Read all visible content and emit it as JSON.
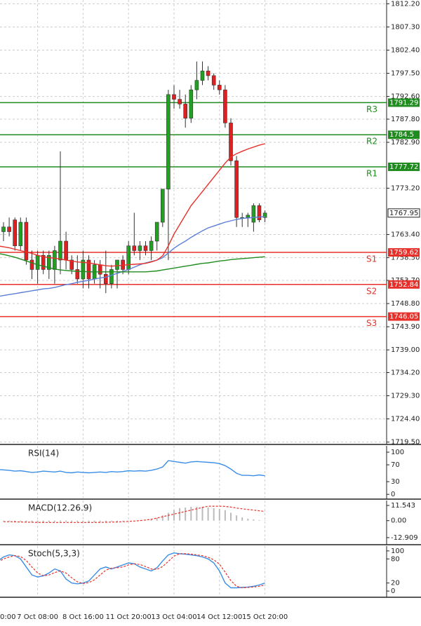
{
  "chart_data": [
    {
      "type": "candlestick",
      "categories": [
        "0:00",
        null,
        null,
        null,
        null,
        null,
        null,
        null,
        "7 Oct 08:00",
        null,
        null,
        null,
        null,
        null,
        null,
        null,
        "8 Oct 16:00",
        null,
        null,
        null,
        null,
        null,
        null,
        null,
        "11 Oct 20:00",
        null,
        null,
        null,
        null,
        null,
        null,
        null,
        "13 Oct 04:00",
        null,
        null,
        null,
        null,
        null,
        null,
        null,
        "14 Oct 12:00",
        null,
        null,
        null,
        null,
        null,
        null,
        null,
        "15 Oct 20:00"
      ],
      "open": [
        null,
        null,
        1764,
        1765,
        1766.5,
        1761,
        1766,
        1758,
        1756,
        1759,
        1756,
        1756,
        1758,
        1762,
        1758,
        1756,
        1754,
        1758,
        1754,
        1757,
        1755,
        1753,
        1756,
        1758,
        1756,
        1761,
        1760,
        1761,
        1760,
        1762,
        1766,
        1773,
        1793,
        1792,
        1791,
        1788,
        1794,
        1796,
        1798,
        1797,
        1795,
        1794,
        1787,
        1779,
        1767,
        1767,
        1766,
        1769.5,
        1767
      ],
      "high": [
        null,
        null,
        1766,
        1767,
        1767,
        1767,
        1767,
        1760,
        1760,
        1760,
        1760,
        1761,
        1781,
        1764,
        1759,
        1759,
        1760,
        1759,
        1758,
        1758,
        1760,
        1757,
        1758,
        1759,
        1762,
        1768,
        1762,
        1762,
        1763,
        1766,
        1773,
        1794,
        1795,
        1794,
        1793,
        1795,
        1800,
        1800,
        1799,
        1797.5,
        1796,
        1795,
        1788,
        1780,
        1768,
        1768,
        1770,
        1770,
        1768.5
      ],
      "low": [
        null,
        null,
        1762,
        1763,
        1760,
        1760,
        1757,
        1754,
        1753,
        1755,
        1754,
        1753,
        1755,
        1756,
        1755,
        1753,
        1752,
        1752,
        1753,
        1752,
        1751,
        1752,
        1752,
        1755,
        1755,
        1759,
        1758,
        1759,
        1758,
        1760,
        1765,
        1758,
        1790,
        1790,
        1786,
        1787,
        1792,
        1795,
        1796,
        1794,
        1793,
        1786,
        1778,
        1765,
        1765,
        1765,
        1764,
        1766,
        1766
      ],
      "close": [
        null,
        null,
        1765,
        1764,
        1761,
        1766,
        1758,
        1756,
        1759,
        1756,
        1759,
        1760,
        1762,
        1758,
        1756,
        1754,
        1758,
        1754,
        1757,
        1755,
        1753,
        1756,
        1758,
        1756,
        1761,
        1760,
        1761,
        1760,
        1762,
        1766,
        1773,
        1793,
        1792,
        1791,
        1788,
        1794,
        1796,
        1798,
        1797,
        1795,
        1794,
        1787,
        1779,
        1767,
        1767,
        1767.5,
        1769.5,
        1766.5,
        1767.95
      ],
      "up_color": "#22a022",
      "down_color": "#e02020",
      "lines": [
        {
          "color": "#5b7fd6",
          "values": [
            null,
            1750.3,
            1750.5,
            1750.7,
            1750.9,
            1751.1,
            1751.3,
            1751.5,
            1751.7,
            1751.9,
            1752.0,
            1752.2,
            1752.5,
            1752.8,
            1753.0,
            1753.3,
            1753.5,
            1753.7,
            1754.0,
            1754.2,
            1754.4,
            1754.8,
            1755.2,
            1755.6,
            1756.0,
            1756.5,
            1757.0,
            1757.4,
            1757.7,
            1758.0,
            1758.5,
            1759.5,
            1760.5,
            1761.3,
            1762.0,
            1762.8,
            1763.5,
            1764.2,
            1764.8,
            1765.2,
            1765.6,
            1766.0,
            1766.3,
            1766.6,
            1766.8,
            1766.9,
            1767.0,
            1767.1,
            1767.2
          ]
        },
        {
          "color": "#1e8c1e",
          "values": [
            null,
            1759.4,
            1759.2,
            1758.9,
            1758.6,
            1758.2,
            1757.8,
            1757.4,
            1757.0,
            1756.7,
            1756.4,
            1756.1,
            1755.9,
            1755.8,
            1755.7,
            1755.6,
            1755.6,
            1755.5,
            1755.5,
            1755.5,
            1755.5,
            1755.5,
            1755.5,
            1755.5,
            1755.5,
            1755.5,
            1755.5,
            1755.5,
            1755.6,
            1755.7,
            1755.9,
            1756.1,
            1756.3,
            1756.5,
            1756.7,
            1756.9,
            1757.1,
            1757.3,
            1757.4,
            1757.6,
            1757.8,
            1757.9,
            1758.1,
            1758.2,
            1758.3,
            1758.4,
            1758.5,
            1758.6,
            1758.7
          ]
        },
        {
          "color": "#e8302a",
          "values": [
            null,
            1761.0,
            1760.8,
            1760.6,
            1760.3,
            1760.0,
            1759.7,
            1759.4,
            1759.0,
            1758.7,
            1758.5,
            1758.4,
            1758.2,
            1758.0,
            1757.8,
            1757.6,
            1757.5,
            1757.4,
            1757.2,
            1757.0,
            1756.8,
            1756.7,
            1756.8,
            1756.9,
            1757.0,
            1757.1,
            1757.2,
            1757.3,
            1757.6,
            1758.0,
            1758.9,
            1761.0,
            1763.5,
            1765.5,
            1767.5,
            1769.5,
            1771.0,
            1772.5,
            1774.0,
            1775.5,
            1777.0,
            1778.5,
            1779.8,
            1780.5,
            1781.0,
            1781.5,
            1781.9,
            1782.3,
            1782.6
          ]
        }
      ],
      "levels": [
        {
          "name": "R3",
          "value": 1791.29,
          "color": "#1e8c1e"
        },
        {
          "name": "R2",
          "value": 1784.5,
          "color": "#1e8c1e"
        },
        {
          "name": "R1",
          "value": 1777.72,
          "color": "#1e8c1e"
        },
        {
          "name": "S1",
          "value": 1759.62,
          "color": "#e8302a"
        },
        {
          "name": "S2",
          "value": 1752.84,
          "color": "#e8302a"
        },
        {
          "name": "S3",
          "value": 1746.05,
          "color": "#e8302a"
        }
      ],
      "last_price": 1767.95,
      "ylim": [
        1719.3,
        1813
      ],
      "yticks": [
        {
          "value": 1812.2,
          "label": "1812.20"
        },
        {
          "value": 1807.3,
          "label": "1807.30"
        },
        {
          "value": 1802.4,
          "label": "1802.40"
        },
        {
          "value": 1797.5,
          "label": "1797.50"
        },
        {
          "value": 1792.6,
          "label": "1792.60"
        },
        {
          "value": 1787.8,
          "label": "1787.80"
        },
        {
          "value": 1782.9,
          "label": "1782.90"
        },
        {
          "value": 1773.2,
          "label": "1773.20"
        },
        {
          "value": 1763.4,
          "label": "1763.40"
        },
        {
          "value": 1758.5,
          "label": "1758.50"
        },
        {
          "value": 1753.7,
          "label": "1753.70"
        },
        {
          "value": 1748.8,
          "label": "1748.80"
        },
        {
          "value": 1743.9,
          "label": "1743.90"
        },
        {
          "value": 1739,
          "label": "1739.00"
        },
        {
          "value": 1734.2,
          "label": "1734.20"
        },
        {
          "value": 1729.3,
          "label": "1729.30"
        },
        {
          "value": 1724.4,
          "label": "1724.40"
        },
        {
          "value": 1719.5,
          "label": "1719.50"
        }
      ],
      "grid": true
    },
    {
      "type": "line",
      "title": "RSI(14)",
      "ylim": [
        -8,
        115
      ],
      "yticks": [
        100,
        70,
        30,
        0
      ],
      "series": [
        {
          "color": "#3a8ee6",
          "values": [
            null,
            59,
            58,
            57,
            55,
            56,
            54,
            52,
            53,
            55,
            54,
            53,
            55,
            52,
            51,
            53,
            52,
            51,
            52,
            53,
            52,
            54,
            53,
            54,
            56,
            55,
            56,
            55,
            57,
            60,
            65,
            80,
            78,
            76,
            74,
            77,
            78,
            77,
            76,
            75,
            73,
            68,
            60,
            50,
            45,
            45,
            44,
            46,
            44
          ]
        }
      ]
    },
    {
      "type": "macd",
      "title": "MACD(12.26.9)",
      "ylim": [
        -17.2,
        15.3
      ],
      "yticks": [
        11.543,
        {
          "value": 0,
          "label": "0.00"
        },
        -12.909
      ],
      "histogram": {
        "color": "#bbbbbb",
        "values": [
          null,
          null,
          -0.5,
          -0.6,
          -0.8,
          -1,
          -1.2,
          -1.3,
          -1.4,
          -1.3,
          -1.2,
          -1,
          -0.8,
          -0.9,
          -1,
          -1.1,
          -1.2,
          -1.3,
          -1.2,
          -1,
          -0.9,
          -0.8,
          -0.6,
          -0.4,
          -0.2,
          0,
          0.3,
          0.6,
          1.0,
          2,
          4,
          6,
          8,
          9.5,
          10,
          10.5,
          10.5,
          10.5,
          10,
          9.5,
          9,
          8,
          6,
          4,
          2.5,
          1.5,
          1,
          0.5,
          0.3
        ]
      },
      "signal": {
        "color": "#e8302a",
        "values": [
          null,
          null,
          -0.8,
          -0.8,
          -0.9,
          -1,
          -1.1,
          -1.2,
          -1.3,
          -1.4,
          -1.4,
          -1.4,
          -1.4,
          -1.4,
          -1.4,
          -1.4,
          -1.4,
          -1.4,
          -1.4,
          -1.3,
          -1.2,
          -1.1,
          -1,
          -0.8,
          -0.6,
          -0.3,
          0,
          0.5,
          1,
          2,
          3,
          4,
          5,
          6,
          7,
          8,
          9,
          10,
          11,
          11,
          11,
          10.8,
          10.3,
          9.6,
          9,
          8.5,
          8,
          7.5,
          7
        ]
      }
    },
    {
      "type": "line",
      "title": "Stoch(5,3,3)",
      "ylim": [
        -12,
        112
      ],
      "yticks": [
        100,
        80,
        20,
        0
      ],
      "series": [
        {
          "color": "#3a8ee6",
          "values": [
            null,
            75,
            85,
            90,
            88,
            80,
            60,
            40,
            35,
            38,
            45,
            55,
            50,
            30,
            20,
            18,
            20,
            25,
            40,
            55,
            60,
            55,
            60,
            65,
            70,
            68,
            60,
            55,
            50,
            58,
            75,
            90,
            95,
            93,
            92,
            90,
            88,
            85,
            80,
            70,
            50,
            20,
            8,
            8,
            9,
            10,
            12,
            15,
            20
          ]
        },
        {
          "color": "#e8302a",
          "dash": true,
          "values": [
            null,
            72,
            80,
            85,
            88,
            86,
            76,
            60,
            45,
            38,
            40,
            46,
            50,
            45,
            33,
            23,
            19,
            21,
            28,
            40,
            52,
            57,
            58,
            60,
            65,
            68,
            66,
            61,
            55,
            54,
            61,
            74,
            87,
            93,
            93,
            92,
            90,
            88,
            84,
            78,
            67,
            47,
            26,
            12,
            8,
            9,
            10,
            12,
            15
          ]
        }
      ]
    }
  ]
}
